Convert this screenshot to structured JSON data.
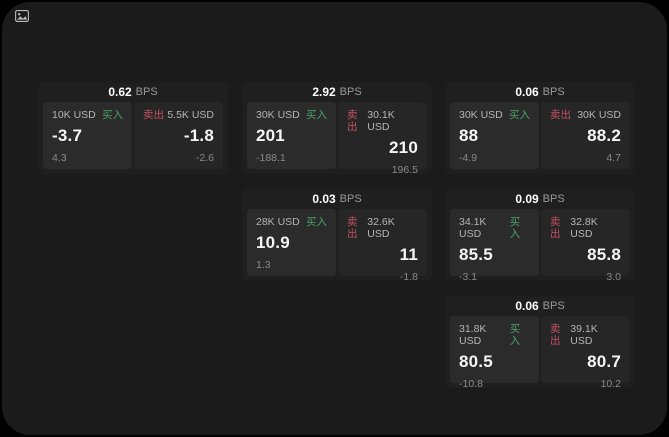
{
  "window": {
    "background": "#000000",
    "panel_background": "#1b1b1b",
    "card_background": "#1f1f1f",
    "buy_panel_background": "#2b2b2b",
    "sell_panel_background": "#262626"
  },
  "colors": {
    "buy": "#4aa368",
    "sell": "#c25064",
    "value_text": "#f5f5f5",
    "label_text": "#b5b5b5",
    "sub_text": "#8a8a8a",
    "bps_unit_text": "#9a9a9a"
  },
  "labels": {
    "buy": "买入",
    "sell": "卖出",
    "bps_unit": "BPS"
  },
  "cards": [
    {
      "col": 1,
      "row": 1,
      "bps": "0.62",
      "buy": {
        "amount": "10K USD",
        "value": "-3.7",
        "sub": "4.3"
      },
      "sell": {
        "amount": "5.5K USD",
        "value": "-1.8",
        "sub": "-2.6"
      }
    },
    {
      "col": 2,
      "row": 1,
      "bps": "2.92",
      "buy": {
        "amount": "30K USD",
        "value": "201",
        "sub": "-188.1"
      },
      "sell": {
        "amount": "30.1K USD",
        "value": "210",
        "sub": "196.5"
      }
    },
    {
      "col": 3,
      "row": 1,
      "bps": "0.06",
      "buy": {
        "amount": "30K USD",
        "value": "88",
        "sub": "-4.9"
      },
      "sell": {
        "amount": "30K USD",
        "value": "88.2",
        "sub": "4.7"
      }
    },
    {
      "col": 2,
      "row": 2,
      "bps": "0.03",
      "buy": {
        "amount": "28K USD",
        "value": "10.9",
        "sub": "1.3"
      },
      "sell": {
        "amount": "32.6K USD",
        "value": "11",
        "sub": "-1.8"
      }
    },
    {
      "col": 3,
      "row": 2,
      "bps": "0.09",
      "buy": {
        "amount": "34.1K USD",
        "value": "85.5",
        "sub": "-3.1"
      },
      "sell": {
        "amount": "32.8K USD",
        "value": "85.8",
        "sub": "3.0"
      }
    },
    {
      "col": 3,
      "row": 3,
      "bps": "0.06",
      "buy": {
        "amount": "31.8K USD",
        "value": "80.5",
        "sub": "-10.8"
      },
      "sell": {
        "amount": "39.1K USD",
        "value": "80.7",
        "sub": "10.2"
      }
    }
  ]
}
